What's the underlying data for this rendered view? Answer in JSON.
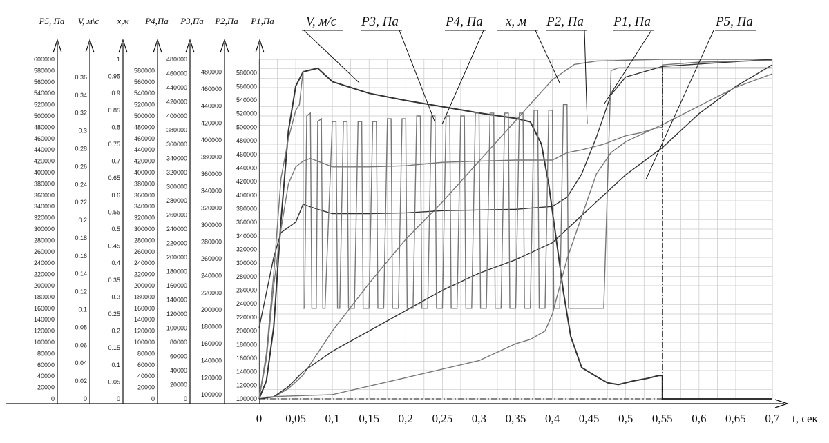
{
  "chart_data": {
    "type": "line",
    "title": "",
    "x": {
      "label": "t, сек",
      "range": [
        0,
        0.7
      ],
      "ticks": [
        0,
        0.05,
        0.1,
        0.15,
        0.2,
        0.25,
        0.3,
        0.35,
        0.4,
        0.45,
        0.5,
        0.55,
        0.6,
        0.65,
        0.7
      ],
      "tick_labels": [
        "0",
        "0,05",
        "0,1",
        "0,15",
        "0,2",
        "0,25",
        "0,3",
        "0,35",
        "0,4",
        "0,45",
        "0,5",
        "0,55",
        "0,6",
        "0,65",
        "0,7"
      ]
    },
    "y_axes": [
      {
        "id": "P5",
        "label": "P5, Па",
        "range": [
          0,
          600000
        ],
        "ticks": [
          0,
          20000,
          40000,
          60000,
          80000,
          100000,
          120000,
          140000,
          160000,
          180000,
          200000,
          220000,
          240000,
          260000,
          280000,
          300000,
          320000,
          340000,
          360000,
          380000,
          400000,
          420000,
          440000,
          460000,
          480000,
          500000,
          520000,
          540000,
          560000,
          580000,
          600000
        ]
      },
      {
        "id": "V",
        "label": "V, м\\с",
        "range": [
          0,
          0.38
        ],
        "ticks": [
          0,
          0.02,
          0.04,
          0.06,
          0.08,
          0.1,
          0.12,
          0.14,
          0.16,
          0.18,
          0.2,
          0.22,
          0.24,
          0.26,
          0.28,
          0.3,
          0.32,
          0.34,
          0.36
        ]
      },
      {
        "id": "x",
        "label": "x,м",
        "range": [
          0,
          1
        ],
        "ticks": [
          0,
          0.05,
          0.1,
          0.15,
          0.2,
          0.25,
          0.3,
          0.35,
          0.4,
          0.45,
          0.5,
          0.55,
          0.6,
          0.65,
          0.7,
          0.75,
          0.8,
          0.85,
          0.9,
          0.95,
          1
        ]
      },
      {
        "id": "P4",
        "label": "P4,Па",
        "range": [
          0,
          600000
        ],
        "ticks": [
          0,
          20000,
          40000,
          60000,
          80000,
          100000,
          120000,
          140000,
          160000,
          180000,
          200000,
          220000,
          240000,
          260000,
          280000,
          300000,
          320000,
          340000,
          360000,
          380000,
          400000,
          420000,
          440000,
          460000,
          480000,
          500000,
          520000,
          540000,
          560000,
          580000
        ]
      },
      {
        "id": "P3",
        "label": "P3,Па",
        "range": [
          0,
          480000
        ],
        "ticks": [
          0,
          20000,
          40000,
          60000,
          80000,
          100000,
          120000,
          140000,
          160000,
          180000,
          200000,
          220000,
          240000,
          260000,
          280000,
          300000,
          320000,
          340000,
          360000,
          380000,
          400000,
          420000,
          440000,
          460000,
          480000
        ]
      },
      {
        "id": "P2",
        "label": "P2,Па",
        "range": [
          95000,
          495000
        ],
        "ticks": [
          100000,
          120000,
          140000,
          160000,
          180000,
          200000,
          220000,
          240000,
          260000,
          280000,
          300000,
          320000,
          340000,
          360000,
          380000,
          400000,
          420000,
          440000,
          460000,
          480000
        ]
      },
      {
        "id": "P1",
        "label": "P1,Па",
        "range": [
          100000,
          600000
        ],
        "ticks": [
          100000,
          120000,
          140000,
          160000,
          180000,
          200000,
          220000,
          240000,
          260000,
          280000,
          300000,
          320000,
          340000,
          360000,
          380000,
          400000,
          420000,
          440000,
          460000,
          480000,
          500000,
          520000,
          540000,
          560000,
          580000
        ]
      }
    ],
    "series": [
      {
        "name": "V, м/с",
        "axis": "V",
        "points": [
          [
            0,
            0
          ],
          [
            0.01,
            0.02
          ],
          [
            0.02,
            0.08
          ],
          [
            0.03,
            0.2
          ],
          [
            0.04,
            0.3
          ],
          [
            0.05,
            0.35
          ],
          [
            0.06,
            0.366
          ],
          [
            0.08,
            0.37
          ],
          [
            0.1,
            0.355
          ],
          [
            0.15,
            0.342
          ],
          [
            0.2,
            0.334
          ],
          [
            0.25,
            0.327
          ],
          [
            0.3,
            0.32
          ],
          [
            0.35,
            0.314
          ],
          [
            0.37,
            0.31
          ],
          [
            0.385,
            0.285
          ],
          [
            0.395,
            0.24
          ],
          [
            0.405,
            0.18
          ],
          [
            0.415,
            0.12
          ],
          [
            0.425,
            0.07
          ],
          [
            0.44,
            0.035
          ],
          [
            0.46,
            0.025
          ],
          [
            0.475,
            0.018
          ],
          [
            0.49,
            0.016
          ],
          [
            0.51,
            0.02
          ],
          [
            0.53,
            0.023
          ],
          [
            0.545,
            0.026
          ],
          [
            0.55,
            0.026
          ],
          [
            0.55,
            0
          ],
          [
            0.7,
            0
          ]
        ]
      },
      {
        "name": "x, м",
        "axis": "x",
        "points": [
          [
            0,
            0
          ],
          [
            0.02,
            0.005
          ],
          [
            0.04,
            0.03
          ],
          [
            0.06,
            0.07
          ],
          [
            0.1,
            0.2
          ],
          [
            0.15,
            0.34
          ],
          [
            0.2,
            0.47
          ],
          [
            0.25,
            0.58
          ],
          [
            0.3,
            0.7
          ],
          [
            0.35,
            0.82
          ],
          [
            0.4,
            0.94
          ],
          [
            0.43,
            0.985
          ],
          [
            0.46,
            0.995
          ],
          [
            0.55,
            1
          ],
          [
            0.7,
            1
          ]
        ]
      },
      {
        "name": "P1, Па",
        "axis": "P1",
        "points": [
          [
            0,
            100000
          ],
          [
            0.02,
            103000
          ],
          [
            0.04,
            118000
          ],
          [
            0.06,
            140000
          ],
          [
            0.1,
            170000
          ],
          [
            0.15,
            200000
          ],
          [
            0.2,
            230000
          ],
          [
            0.25,
            260000
          ],
          [
            0.3,
            285000
          ],
          [
            0.35,
            305000
          ],
          [
            0.4,
            330000
          ],
          [
            0.45,
            380000
          ],
          [
            0.5,
            430000
          ],
          [
            0.55,
            470000
          ],
          [
            0.6,
            520000
          ],
          [
            0.65,
            560000
          ],
          [
            0.7,
            592000
          ]
        ]
      },
      {
        "name": "P2, Па",
        "axis": "P2",
        "points": [
          [
            0,
            95000
          ],
          [
            0.01,
            97000
          ],
          [
            0.03,
            98000
          ],
          [
            0.1,
            100000
          ],
          [
            0.2,
            120000
          ],
          [
            0.3,
            140000
          ],
          [
            0.35,
            160000
          ],
          [
            0.37,
            165000
          ],
          [
            0.39,
            175000
          ],
          [
            0.4,
            195000
          ],
          [
            0.42,
            260000
          ],
          [
            0.44,
            310000
          ],
          [
            0.46,
            360000
          ],
          [
            0.48,
            385000
          ],
          [
            0.5,
            398000
          ],
          [
            0.55,
            418000
          ],
          [
            0.6,
            440000
          ],
          [
            0.65,
            462000
          ],
          [
            0.7,
            478000
          ]
        ]
      },
      {
        "name": "P3, Па",
        "axis": "P3",
        "points": [
          [
            0,
            100000
          ],
          [
            0.01,
            150000
          ],
          [
            0.02,
            200000
          ],
          [
            0.03,
            235000
          ],
          [
            0.05,
            250000
          ],
          [
            0.06,
            275000
          ],
          [
            0.08,
            268000
          ],
          [
            0.1,
            262000
          ],
          [
            0.15,
            262000
          ],
          [
            0.2,
            263000
          ],
          [
            0.25,
            266000
          ],
          [
            0.3,
            267000
          ],
          [
            0.35,
            268000
          ],
          [
            0.4,
            272000
          ],
          [
            0.42,
            285000
          ],
          [
            0.44,
            318000
          ],
          [
            0.46,
            370000
          ],
          [
            0.48,
            430000
          ],
          [
            0.5,
            455000
          ],
          [
            0.55,
            470000
          ],
          [
            0.7,
            480000
          ]
        ]
      },
      {
        "name": "P4, Па",
        "axis": "P4",
        "points": [
          [
            0,
            0
          ],
          [
            0.01,
            80000
          ],
          [
            0.02,
            220000
          ],
          [
            0.03,
            390000
          ],
          [
            0.04,
            460000
          ],
          [
            0.05,
            510000
          ],
          [
            0.055,
            520000
          ],
          [
            0.06,
            580000
          ],
          [
            0.06,
            160000
          ],
          [
            0.062,
            160000
          ],
          [
            0.065,
            500000
          ],
          [
            0.07,
            505000
          ],
          [
            0.072,
            160000
          ],
          [
            0.078,
            160000
          ],
          [
            0.08,
            490000
          ],
          [
            0.085,
            495000
          ],
          [
            0.087,
            160000
          ],
          [
            0.09,
            160000
          ],
          [
            0.1,
            490000
          ],
          [
            0.105,
            490000
          ],
          [
            0.107,
            160000
          ],
          [
            0.11,
            160000
          ],
          [
            0.115,
            490000
          ],
          [
            0.12,
            490000
          ],
          [
            0.122,
            160000
          ],
          [
            0.13,
            160000
          ],
          [
            0.135,
            490000
          ],
          [
            0.14,
            490000
          ],
          [
            0.142,
            160000
          ],
          [
            0.15,
            160000
          ],
          [
            0.155,
            490000
          ],
          [
            0.16,
            490000
          ],
          [
            0.162,
            160000
          ],
          [
            0.17,
            160000
          ],
          [
            0.175,
            495000
          ],
          [
            0.18,
            495000
          ],
          [
            0.182,
            160000
          ],
          [
            0.19,
            160000
          ],
          [
            0.195,
            495000
          ],
          [
            0.2,
            495000
          ],
          [
            0.202,
            160000
          ],
          [
            0.21,
            160000
          ],
          [
            0.215,
            500000
          ],
          [
            0.22,
            500000
          ],
          [
            0.222,
            160000
          ],
          [
            0.23,
            160000
          ],
          [
            0.235,
            500000
          ],
          [
            0.24,
            500000
          ],
          [
            0.242,
            160000
          ],
          [
            0.25,
            160000
          ],
          [
            0.255,
            500000
          ],
          [
            0.26,
            500000
          ],
          [
            0.262,
            160000
          ],
          [
            0.27,
            160000
          ],
          [
            0.275,
            500000
          ],
          [
            0.28,
            500000
          ],
          [
            0.282,
            160000
          ],
          [
            0.29,
            160000
          ],
          [
            0.295,
            505000
          ],
          [
            0.3,
            505000
          ],
          [
            0.302,
            160000
          ],
          [
            0.31,
            160000
          ],
          [
            0.315,
            505000
          ],
          [
            0.32,
            505000
          ],
          [
            0.322,
            160000
          ],
          [
            0.33,
            160000
          ],
          [
            0.335,
            505000
          ],
          [
            0.34,
            505000
          ],
          [
            0.342,
            160000
          ],
          [
            0.35,
            160000
          ],
          [
            0.355,
            505000
          ],
          [
            0.36,
            505000
          ],
          [
            0.362,
            160000
          ],
          [
            0.37,
            160000
          ],
          [
            0.375,
            510000
          ],
          [
            0.38,
            510000
          ],
          [
            0.382,
            160000
          ],
          [
            0.39,
            160000
          ],
          [
            0.395,
            510000
          ],
          [
            0.4,
            510000
          ],
          [
            0.402,
            160000
          ],
          [
            0.41,
            160000
          ],
          [
            0.415,
            520000
          ],
          [
            0.42,
            520000
          ],
          [
            0.422,
            160000
          ],
          [
            0.47,
            160000
          ],
          [
            0.48,
            580000
          ],
          [
            0.49,
            585000
          ],
          [
            0.5,
            585000
          ],
          [
            0.55,
            585000
          ],
          [
            0.6,
            585000
          ],
          [
            0.7,
            585000
          ]
        ]
      },
      {
        "name": "P5, Па",
        "axis": "P5",
        "points": [
          [
            0,
            0
          ],
          [
            0.01,
            70000
          ],
          [
            0.02,
            200000
          ],
          [
            0.03,
            300000
          ],
          [
            0.04,
            380000
          ],
          [
            0.05,
            410000
          ],
          [
            0.06,
            420000
          ],
          [
            0.07,
            425000
          ],
          [
            0.08,
            420000
          ],
          [
            0.09,
            415000
          ],
          [
            0.1,
            410000
          ],
          [
            0.15,
            410000
          ],
          [
            0.2,
            412000
          ],
          [
            0.25,
            418000
          ],
          [
            0.3,
            420000
          ],
          [
            0.35,
            422000
          ],
          [
            0.4,
            422000
          ],
          [
            0.42,
            435000
          ],
          [
            0.44,
            440000
          ],
          [
            0.47,
            450000
          ],
          [
            0.49,
            460000
          ],
          [
            0.5,
            465000
          ],
          [
            0.52,
            470000
          ],
          [
            0.54,
            478000
          ],
          [
            0.55,
            480000
          ],
          [
            0.55,
            590000
          ],
          [
            0.6,
            595000
          ],
          [
            0.7,
            598000
          ]
        ]
      }
    ],
    "callout_labels": [
      "V, м/с",
      "P3, Па",
      "P4, Па",
      "x, м",
      "P2, Па",
      "P1, Па",
      "P5, Па"
    ],
    "grid": true,
    "legend": "callout labels above plot"
  },
  "colors": {
    "axis": "#111111",
    "grid": "#c8c8c8",
    "curve": "#333333",
    "grey": "#777777"
  }
}
